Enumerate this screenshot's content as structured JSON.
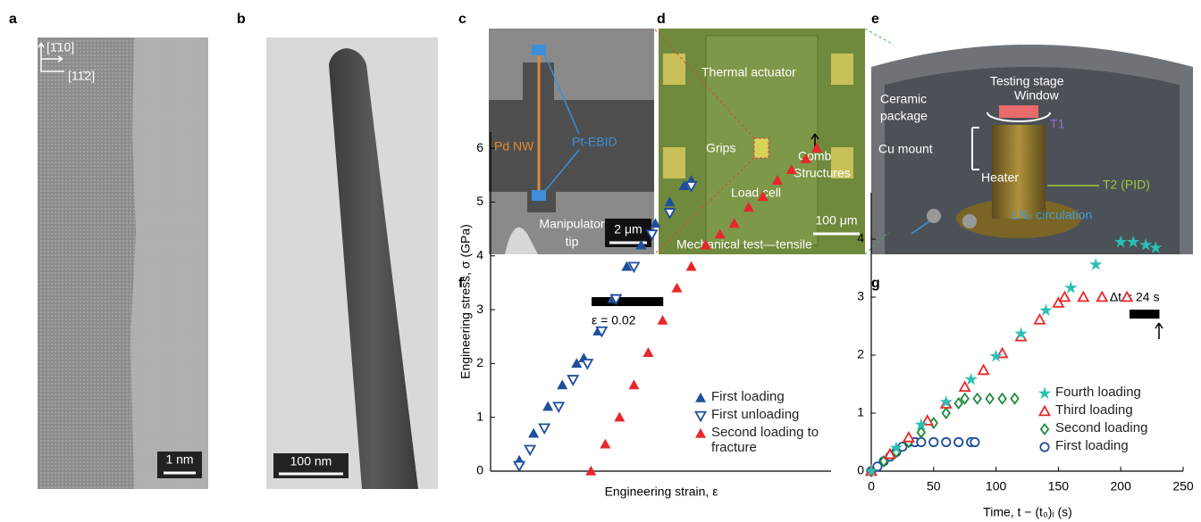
{
  "panels": {
    "a": {
      "letter": "a",
      "axes": [
        "[1̄10]",
        "[11̄2]"
      ],
      "scale_bar": "1 nm"
    },
    "b": {
      "letter": "b",
      "scale_bar": "100 nm"
    },
    "c": {
      "letter": "c",
      "labels": [
        "Pd NW",
        "Pt-EBID",
        "Manipulator",
        "tip"
      ],
      "scale_bar": "2 μm"
    },
    "d": {
      "letter": "d",
      "labels": [
        "Thermal actuator",
        "Grips",
        "Comb",
        "Structures",
        "Load cell",
        "Mechanical test—tensile"
      ],
      "scale_bar": "100 μm"
    },
    "e": {
      "letter": "e",
      "labels": [
        "Testing stage",
        "Window",
        "Ceramic",
        "package",
        "T1",
        "Cu mount",
        "Heater",
        "T2 (PID)",
        "LN₂ circulation"
      ]
    }
  },
  "chart_data": [
    {
      "type": "scatter",
      "label": "f",
      "y_label": "Engineering stress, σ (GPa)",
      "x_label": "Engineering strain, ε",
      "xlim": [
        0,
        0.095
      ],
      "ylim": [
        0,
        6.3
      ],
      "yticks": [
        0,
        1,
        2,
        3,
        4,
        5,
        6
      ],
      "scale_bar": {
        "value": 0.02,
        "label": "ε = 0.02"
      },
      "series": [
        {
          "name": "First loading",
          "color": "#1f4e9c",
          "marker": "triangle-up",
          "filled": true,
          "x": [
            0.008,
            0.012,
            0.016,
            0.02,
            0.024,
            0.026,
            0.03,
            0.034,
            0.038,
            0.042,
            0.046,
            0.05,
            0.054,
            0.056
          ],
          "values": [
            0.2,
            0.7,
            1.2,
            1.6,
            2.0,
            2.1,
            2.6,
            3.2,
            3.8,
            4.2,
            4.6,
            5.0,
            5.3,
            5.4
          ]
        },
        {
          "name": "First unloading",
          "color": "#1f4e9c",
          "marker": "triangle-down",
          "filled": false,
          "x": [
            0.056,
            0.05,
            0.045,
            0.04,
            0.035,
            0.031,
            0.027,
            0.023,
            0.019,
            0.015,
            0.011,
            0.008
          ],
          "values": [
            5.3,
            4.8,
            4.4,
            3.8,
            3.2,
            2.6,
            2.0,
            1.7,
            1.2,
            0.8,
            0.4,
            0.1
          ]
        },
        {
          "name": "Second loading to fracture",
          "color": "#e8262b",
          "marker": "triangle-up",
          "filled": true,
          "x": [
            0.028,
            0.032,
            0.036,
            0.04,
            0.044,
            0.048,
            0.052,
            0.056,
            0.06,
            0.064,
            0.068,
            0.072,
            0.076,
            0.08,
            0.084,
            0.088,
            0.091
          ],
          "values": [
            0,
            0.5,
            1.0,
            1.6,
            2.2,
            2.8,
            3.4,
            3.8,
            4.2,
            4.4,
            4.6,
            4.9,
            5.1,
            5.4,
            5.6,
            5.8,
            6.0
          ]
        }
      ]
    },
    {
      "type": "scatter",
      "label": "g",
      "x_label": "Time, t − (t₀)ᵢ (s)",
      "xlim": [
        0,
        250
      ],
      "xticks": [
        0,
        50,
        100,
        150,
        200,
        250
      ],
      "ylim": [
        0,
        4.8
      ],
      "yticks": [
        0,
        1,
        2,
        3,
        4
      ],
      "scale_bar": {
        "value": 24,
        "label": "Δt = 24 s"
      },
      "series": [
        {
          "name": "Fourth loading",
          "color": "#2bbfb3",
          "marker": "star",
          "filled": true,
          "x": [
            0,
            20,
            40,
            60,
            80,
            100,
            120,
            140,
            160,
            180,
            200,
            210,
            220,
            228
          ],
          "values": [
            0,
            0.4,
            0.8,
            1.19,
            1.58,
            1.98,
            2.37,
            2.77,
            3.16,
            3.56,
            3.95,
            3.95,
            3.9,
            3.85
          ]
        },
        {
          "name": "Third loading",
          "color": "#e8262b",
          "marker": "triangle-up",
          "filled": false,
          "x": [
            0,
            15,
            30,
            45,
            60,
            75,
            90,
            105,
            120,
            135,
            150,
            155,
            170,
            185,
            205
          ],
          "values": [
            0,
            0.29,
            0.58,
            0.87,
            1.16,
            1.45,
            1.74,
            2.03,
            2.32,
            2.61,
            2.9,
            3.0,
            3.0,
            3.0,
            3.0
          ]
        },
        {
          "name": "Second loading",
          "color": "#1e8a3a",
          "marker": "diamond",
          "filled": false,
          "x": [
            0,
            10,
            20,
            30,
            40,
            50,
            60,
            70,
            75,
            85,
            95,
            105,
            115
          ],
          "values": [
            0,
            0.17,
            0.33,
            0.5,
            0.67,
            0.83,
            1.0,
            1.17,
            1.25,
            1.25,
            1.25,
            1.25,
            1.25
          ]
        },
        {
          "name": "First loading",
          "color": "#1f4e9c",
          "marker": "circle",
          "filled": false,
          "x": [
            0,
            5,
            10,
            15,
            20,
            25,
            30,
            35,
            40,
            50,
            60,
            70,
            80,
            83
          ],
          "values": [
            0,
            0.08,
            0.17,
            0.25,
            0.33,
            0.42,
            0.5,
            0.5,
            0.5,
            0.5,
            0.5,
            0.5,
            0.5,
            0.5
          ]
        }
      ]
    }
  ]
}
